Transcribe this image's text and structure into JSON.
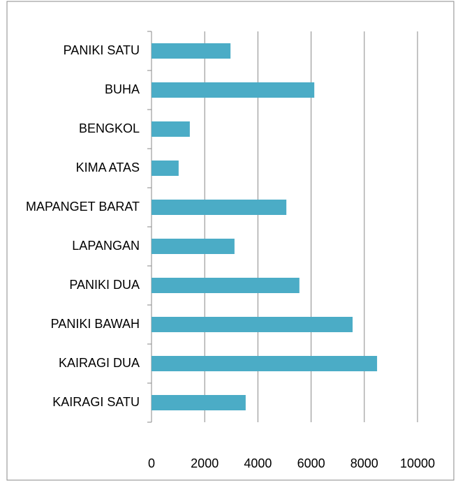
{
  "chart_data": {
    "type": "bar",
    "orientation": "horizontal",
    "categories": [
      "PANIKI SATU",
      "BUHA",
      "BENGKOL",
      "KIMA ATAS",
      "MAPANGET BARAT",
      "LAPANGAN",
      "PANIKI DUA",
      "PANIKI BAWAH",
      "KAIRAGI DUA",
      "KAIRAGI SATU"
    ],
    "values": [
      2970,
      6120,
      1440,
      1020,
      5070,
      3120,
      5560,
      7560,
      8480,
      3540
    ],
    "color": "#4bacc6",
    "xlim": [
      0,
      10000
    ],
    "xticks": [
      0,
      2000,
      4000,
      6000,
      8000,
      10000
    ],
    "grid": true
  }
}
